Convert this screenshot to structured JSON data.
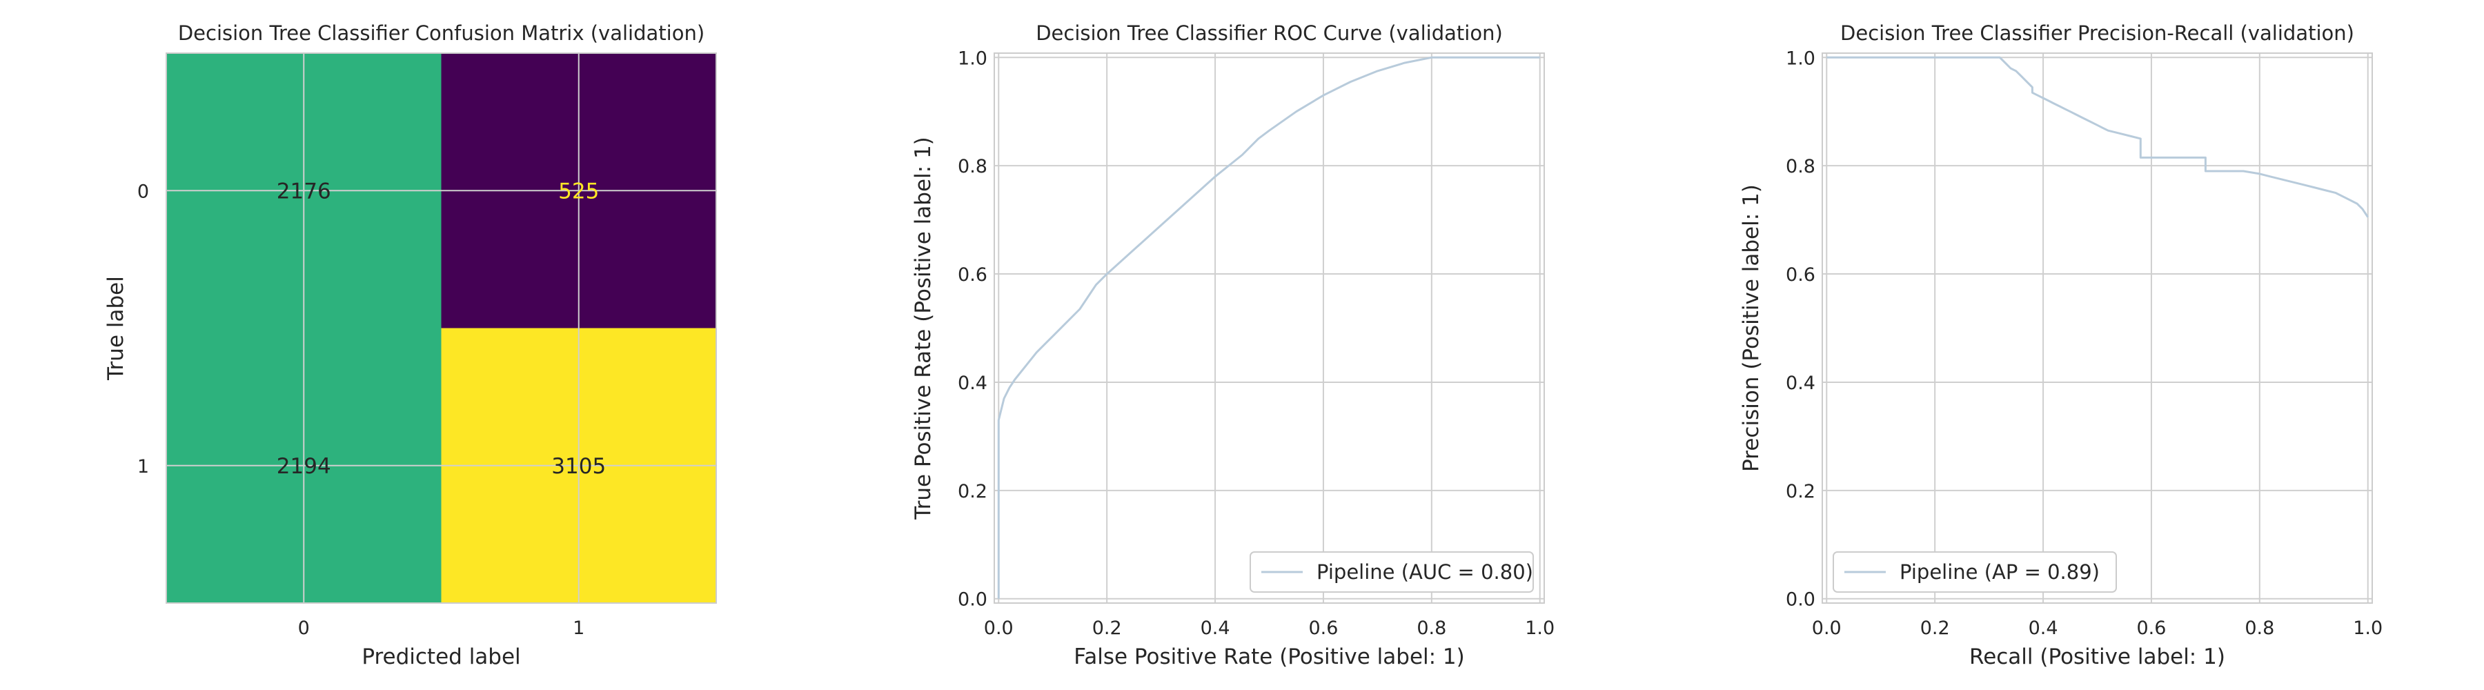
{
  "colors": {
    "grid": "#cfcfcf",
    "frame": "#cccccc",
    "curve": "#b8cbdb",
    "cm_green": "#2db27d",
    "cm_purple": "#440154",
    "cm_yellow": "#fde725",
    "text_dark": "#262626",
    "text_on_dark": "#fde725"
  },
  "chart_data": [
    {
      "type": "heatmap",
      "title": "Decision Tree Classifier Confusion Matrix (validation)",
      "xlabel": "Predicted label",
      "ylabel": "True label",
      "x_categories": [
        "0",
        "1"
      ],
      "y_categories": [
        "0",
        "1"
      ],
      "values": [
        [
          2176,
          525
        ],
        [
          2194,
          3105
        ]
      ],
      "cell_colors": [
        [
          "#2db27d",
          "#440154"
        ],
        [
          "#2db27d",
          "#fde725"
        ]
      ],
      "grid": true,
      "legend": "none"
    },
    {
      "type": "line",
      "title": "Decision Tree Classifier ROC Curve (validation)",
      "xlabel": "False Positive Rate (Positive label: 1)",
      "ylabel": "True Positive Rate (Positive label: 1)",
      "xlim": [
        0,
        1
      ],
      "ylim": [
        0,
        1
      ],
      "xticks": [
        "0.0",
        "0.2",
        "0.4",
        "0.6",
        "0.8",
        "1.0"
      ],
      "yticks": [
        "0.0",
        "0.2",
        "0.4",
        "0.6",
        "0.8",
        "1.0"
      ],
      "grid": true,
      "legend_position": "lower-right",
      "series": [
        {
          "name": "Pipeline (AUC = 0.80)",
          "x": [
            0,
            0,
            0.005,
            0.01,
            0.02,
            0.03,
            0.05,
            0.07,
            0.09,
            0.1,
            0.12,
            0.15,
            0.17,
            0.18,
            0.2,
            0.25,
            0.3,
            0.35,
            0.4,
            0.45,
            0.48,
            0.5,
            0.55,
            0.6,
            0.65,
            0.7,
            0.75,
            0.8,
            0.85,
            0.9,
            0.95,
            1.0
          ],
          "y": [
            0,
            0.33,
            0.35,
            0.37,
            0.39,
            0.405,
            0.43,
            0.455,
            0.475,
            0.485,
            0.505,
            0.535,
            0.565,
            0.58,
            0.6,
            0.645,
            0.69,
            0.735,
            0.78,
            0.82,
            0.85,
            0.865,
            0.9,
            0.93,
            0.955,
            0.975,
            0.99,
            1.0,
            1.0,
            1.0,
            1.0,
            1.0
          ]
        }
      ]
    },
    {
      "type": "line",
      "title": "Decision Tree Classifier Precision-Recall (validation)",
      "xlabel": "Recall (Positive label: 1)",
      "ylabel": "Precision (Positive label: 1)",
      "xlim": [
        0,
        1
      ],
      "ylim": [
        0,
        1
      ],
      "xticks": [
        "0.0",
        "0.2",
        "0.4",
        "0.6",
        "0.8",
        "1.0"
      ],
      "yticks": [
        "0.0",
        "0.2",
        "0.4",
        "0.6",
        "0.8",
        "1.0"
      ],
      "grid": true,
      "legend_position": "lower-left",
      "series": [
        {
          "name": "Pipeline (AP = 0.89)",
          "x": [
            0,
            0.32,
            0.33,
            0.34,
            0.35,
            0.36,
            0.37,
            0.38,
            0.38,
            0.39,
            0.4,
            0.41,
            0.42,
            0.43,
            0.44,
            0.45,
            0.46,
            0.47,
            0.48,
            0.5,
            0.51,
            0.52,
            0.54,
            0.56,
            0.58,
            0.58,
            0.6,
            0.63,
            0.66,
            0.7,
            0.7,
            0.74,
            0.77,
            0.8,
            0.82,
            0.84,
            0.86,
            0.88,
            0.9,
            0.92,
            0.94,
            0.96,
            0.98,
            0.99,
            1.0
          ],
          "y": [
            1.0,
            1.0,
            0.99,
            0.98,
            0.975,
            0.965,
            0.955,
            0.945,
            0.935,
            0.93,
            0.925,
            0.92,
            0.915,
            0.91,
            0.905,
            0.9,
            0.895,
            0.89,
            0.885,
            0.875,
            0.87,
            0.865,
            0.86,
            0.855,
            0.85,
            0.815,
            0.815,
            0.815,
            0.815,
            0.815,
            0.79,
            0.79,
            0.79,
            0.785,
            0.78,
            0.775,
            0.77,
            0.765,
            0.76,
            0.755,
            0.75,
            0.74,
            0.73,
            0.72,
            0.705
          ]
        }
      ]
    }
  ]
}
